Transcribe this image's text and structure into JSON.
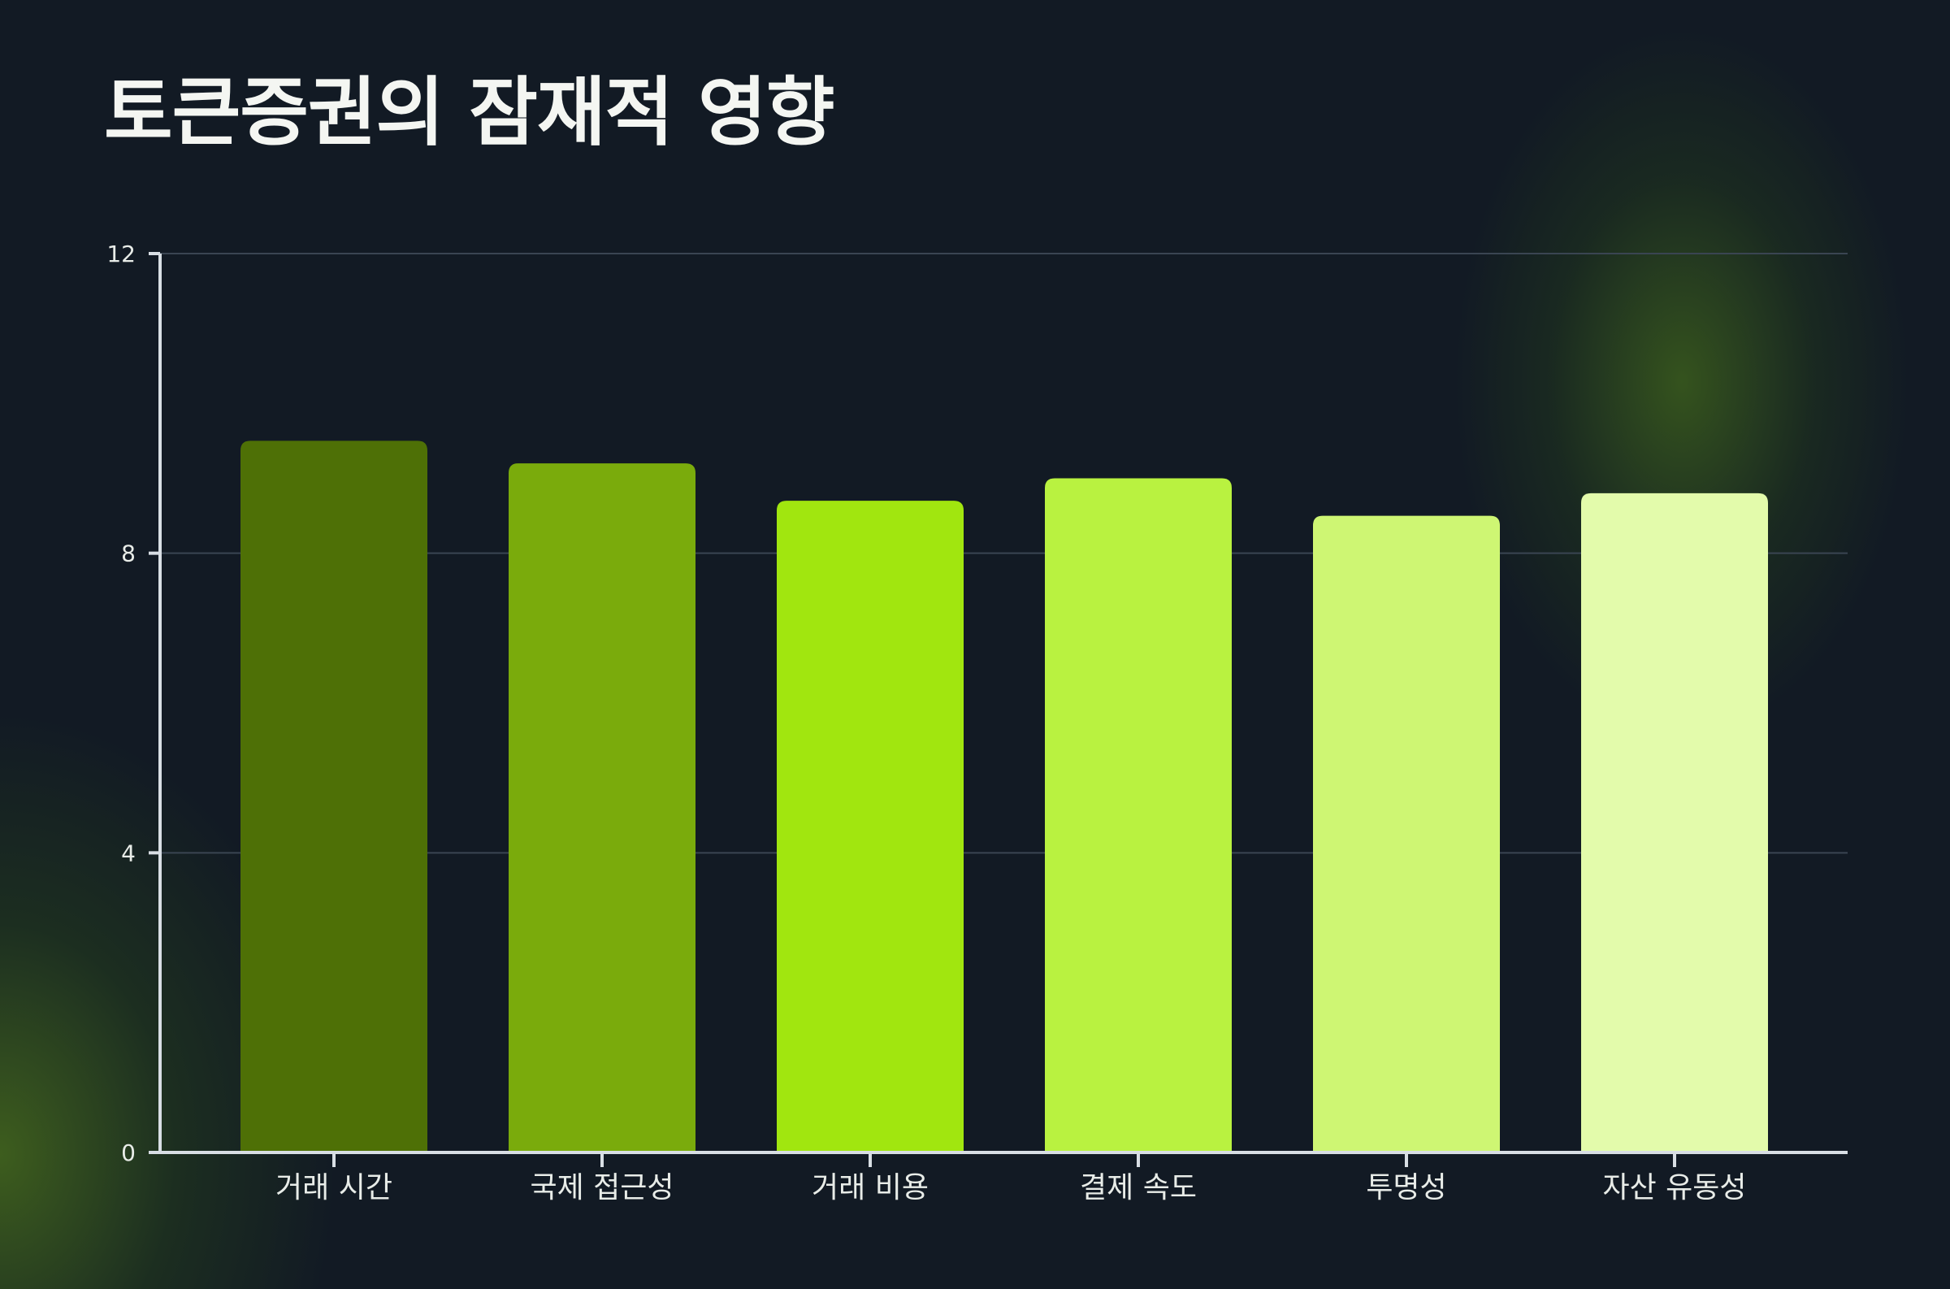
{
  "chart_data": {
    "type": "bar",
    "title": "토큰증권의 잠재적 영향",
    "xlabel": "",
    "ylabel": "",
    "categories": [
      "거래 시간",
      "국제 접근성",
      "거래 비용",
      "결제 속도",
      "투명성",
      "자산 유동성"
    ],
    "values": [
      9.5,
      9.2,
      8.7,
      9.0,
      8.5,
      8.8
    ],
    "ylim": [
      0,
      12
    ],
    "yticks": [
      "0",
      "4",
      "8",
      "12"
    ],
    "grid": true,
    "legend": "none",
    "bar_colors": [
      "#4e7006",
      "#7aab0c",
      "#a1e60f",
      "#b9f240",
      "#cef673",
      "#e3fbab"
    ]
  },
  "colors": {
    "background": "#121a24",
    "axis": "#d8dee4",
    "gridline": "#3a4552",
    "text": "#e8ece8"
  }
}
